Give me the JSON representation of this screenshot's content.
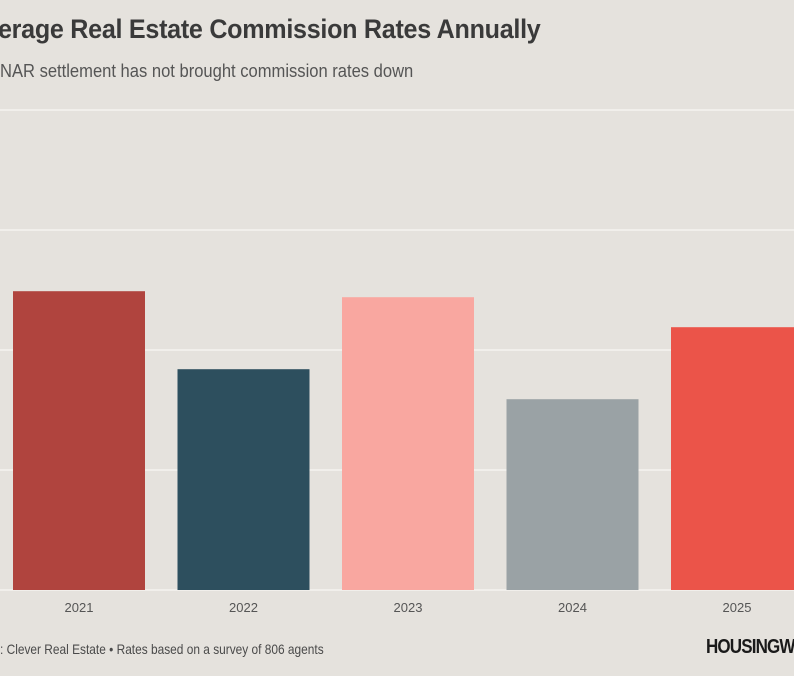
{
  "chart_data": {
    "type": "bar",
    "title": "erage Real Estate Commission Rates Annually",
    "subtitle": "NAR settlement has not brought commission rates down",
    "categories": [
      "2021",
      "2022",
      "2023",
      "2024",
      "2025"
    ],
    "values": [
      2.49,
      1.84,
      2.44,
      1.59,
      2.19
    ],
    "colors": [
      "#b0443e",
      "#2d4f5e",
      "#f9a7a0",
      "#9aa2a5",
      "#eb5449"
    ],
    "ylim": [
      0,
      4
    ],
    "grid": true,
    "legend": "none",
    "source": ": Clever Real Estate • Rates based on a survey of 806 agents",
    "logo": "HOUSINGW"
  },
  "colors": {
    "background": "#e5e2dd",
    "gridline": "#f1efeb"
  }
}
